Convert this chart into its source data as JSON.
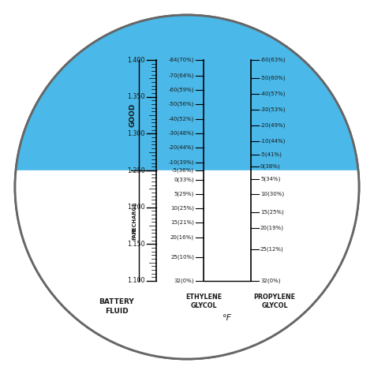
{
  "circle_edge_color": "#666666",
  "blue_bg_color": "#4ab8e8",
  "dark_text": "#1a1a1a",
  "fig_bg": "#ffffff",
  "battery_scale_labels": [
    1.1,
    1.15,
    1.2,
    1.25,
    1.3,
    1.35,
    1.4
  ],
  "ethylene_glycol_labels": [
    "-84(70%)",
    "-70(64%)",
    "-60(59%)",
    "-50(56%)",
    "-40(52%)",
    "-30(48%)",
    "-20(44%)",
    "-10(39%)",
    "-5(36%)",
    "0(33%)",
    "5(29%)",
    "10(25%)",
    "15(21%)",
    "20(16%)",
    "25(10%)",
    "ETHYLENE",
    "GLYCOL",
    "32(0%)"
  ],
  "propylene_glycol_labels": [
    "-60(63%)",
    "-50(60%)",
    "-40(57%)",
    "-30(53%)",
    "-20(49%)",
    "-10(44%)",
    "-5(41%)",
    "0(38%)",
    "5(34%)",
    "10(30%)",
    "15(25%)",
    "20(19%)",
    "25(12%)",
    "PROPYLENE",
    "GLYCOL",
    "32(0%)"
  ],
  "fahrenheit_label": "°F"
}
